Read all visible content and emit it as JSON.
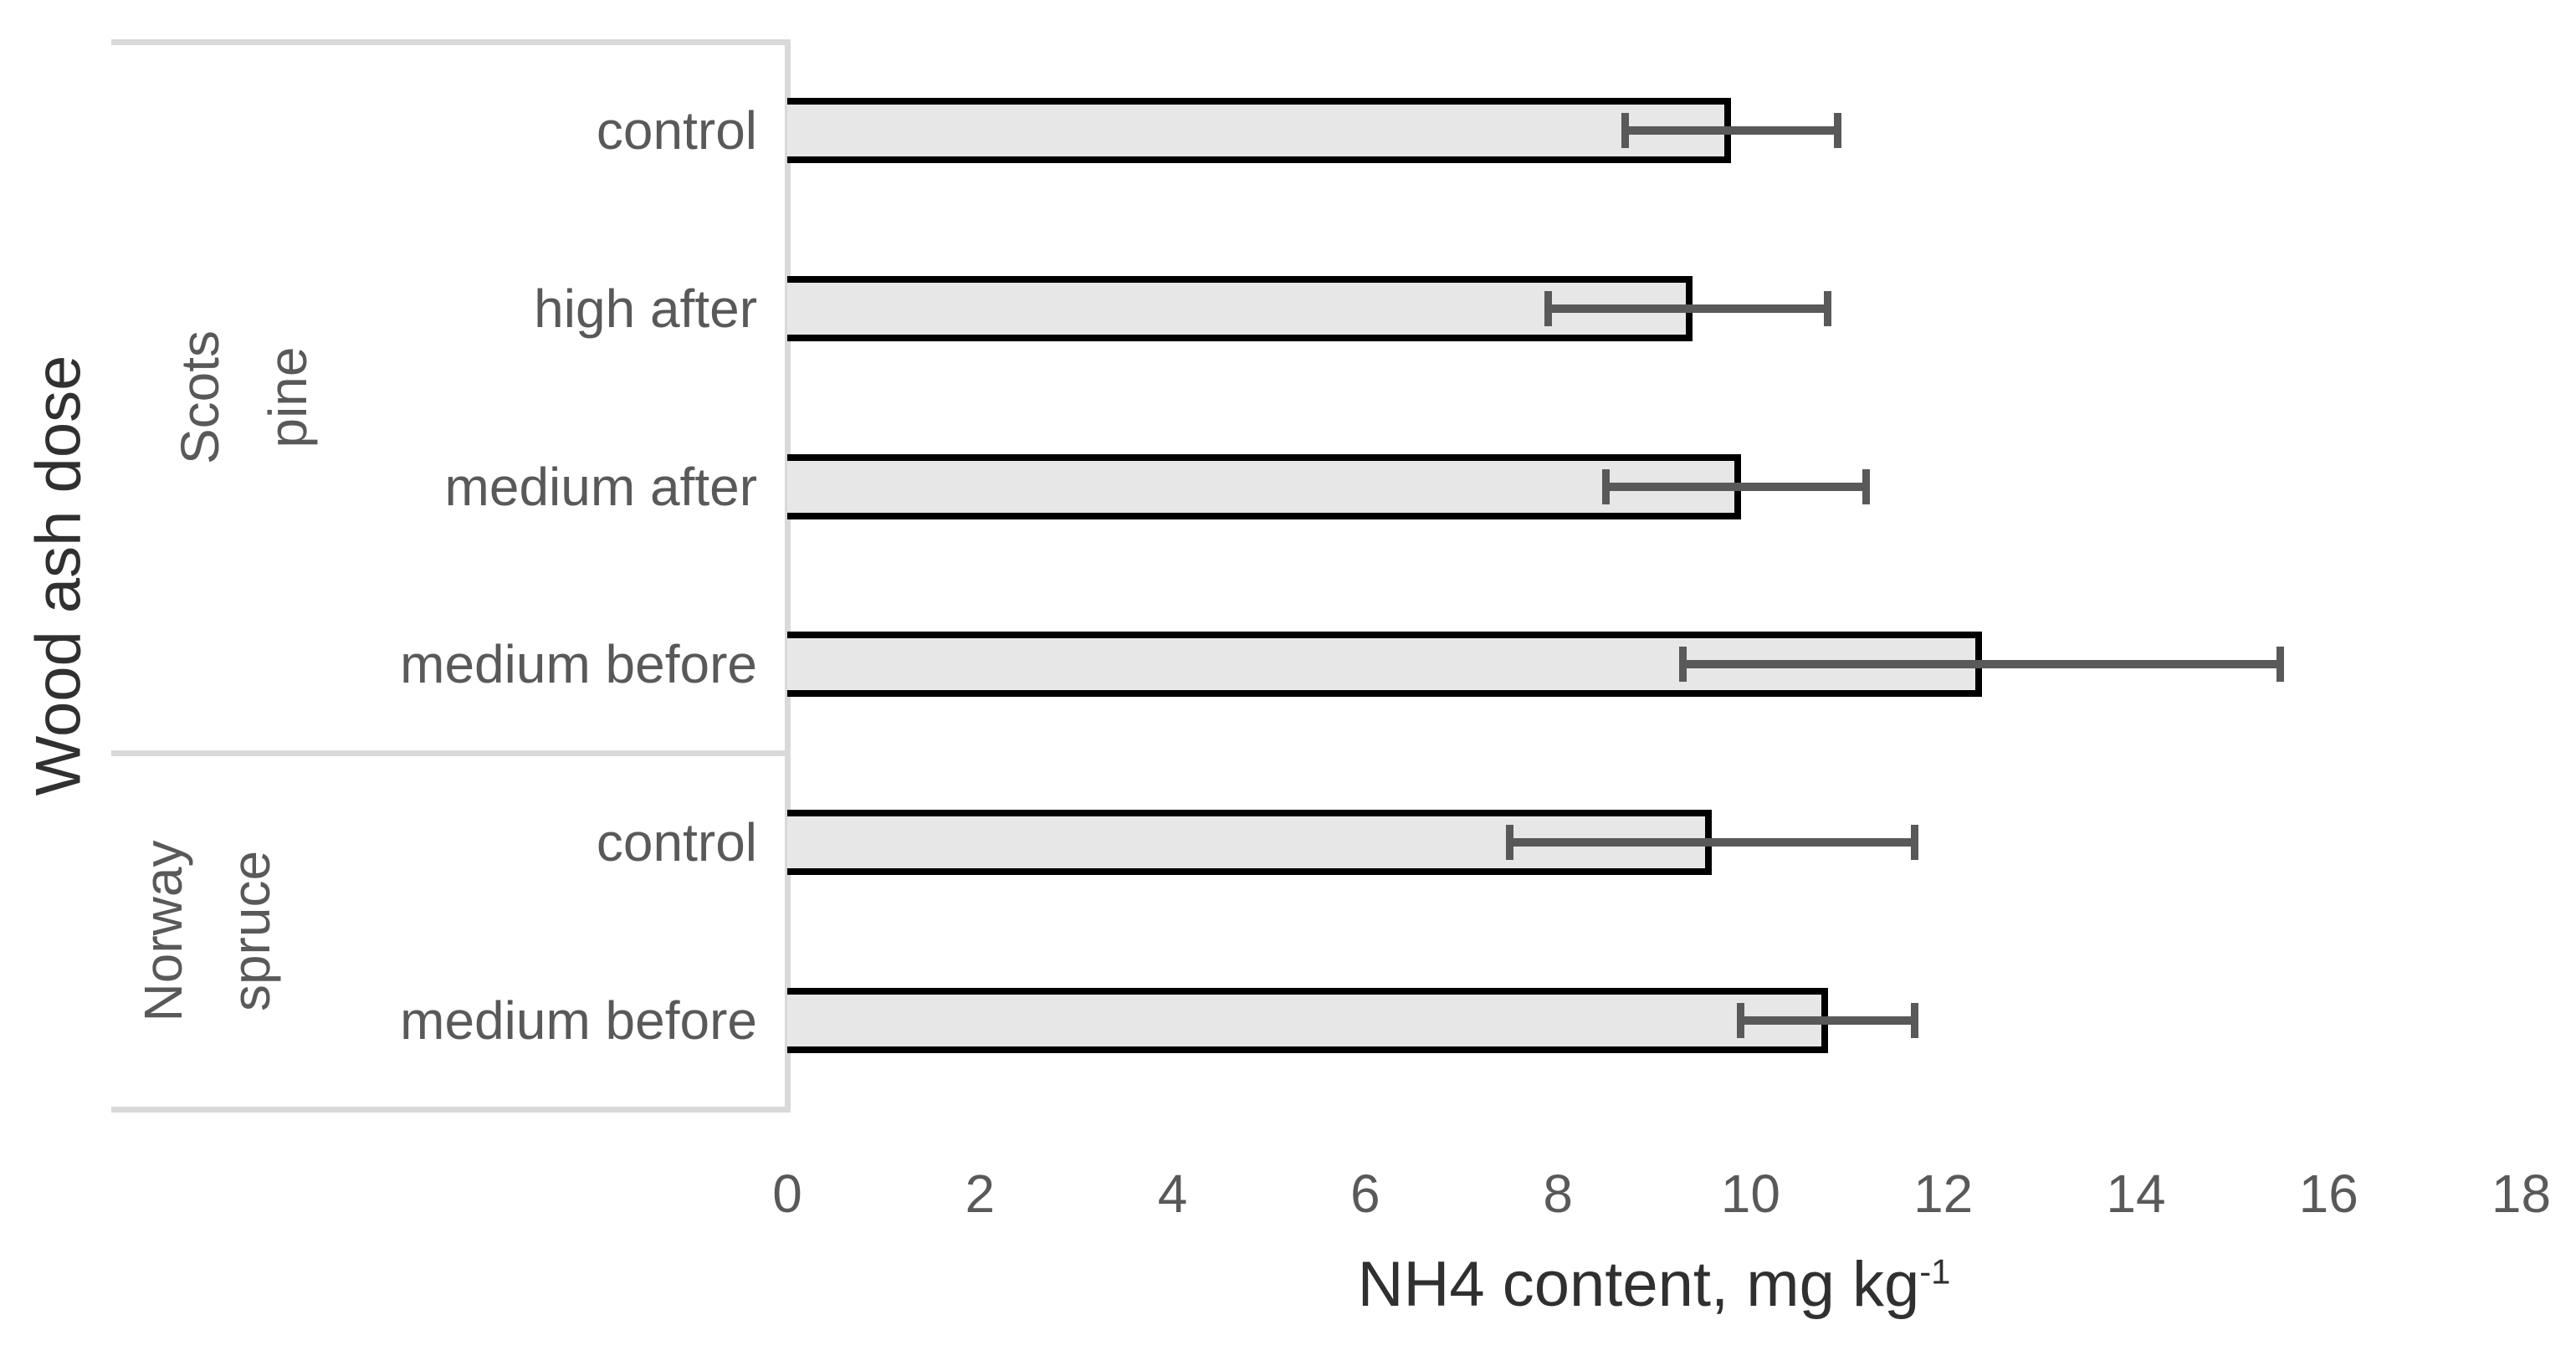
{
  "chart_data": {
    "type": "bar",
    "orientation": "horizontal",
    "ylabel": "Wood ash dose",
    "xlabel": {
      "text": "NH4 content, mg kg",
      "sup": "-1"
    },
    "xlim": [
      0,
      18
    ],
    "xticks": [
      0,
      2,
      4,
      6,
      8,
      10,
      12,
      14,
      16,
      18
    ],
    "grid": false,
    "legend": "none",
    "groups": [
      {
        "label": "Scots pine",
        "label_lines": "Scots pine",
        "categories": [
          "control",
          "high after",
          "medium after",
          "medium before"
        ],
        "values": [
          9.8,
          9.4,
          9.9,
          12.4
        ],
        "err_low": [
          8.7,
          7.9,
          8.5,
          9.3
        ],
        "err_high": [
          10.9,
          10.8,
          11.2,
          15.5
        ]
      },
      {
        "label": "Norway spruce",
        "label_lines": "Norway\nspruce",
        "categories": [
          "control",
          "medium before"
        ],
        "values": [
          9.6,
          10.8
        ],
        "err_low": [
          7.5,
          9.9
        ],
        "err_high": [
          11.7,
          11.7
        ]
      }
    ],
    "colors": {
      "bar_fill": "#e7e7e7",
      "bar_border": "#000000",
      "error_bar": "#595959",
      "axis_line": "#d9d9d9",
      "tick_text": "#595959",
      "category_text": "#595959",
      "group_text": "#595959",
      "title_text": "#303030",
      "background": "#ffffff"
    }
  }
}
